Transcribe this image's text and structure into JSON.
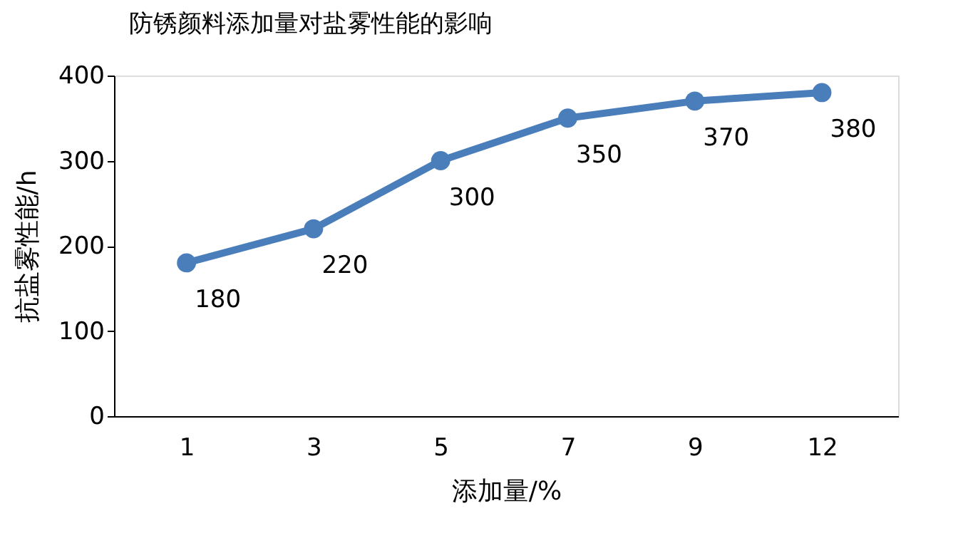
{
  "chart_data": {
    "type": "line",
    "title": "防锈颜料添加量对盐雾性能的影响",
    "xlabel": "添加量/%",
    "ylabel": "抗盐雾性能/h",
    "categories": [
      "1",
      "3",
      "5",
      "7",
      "9",
      "12"
    ],
    "series": [
      {
        "color": "#4a7ebb",
        "values": [
          180,
          220,
          300,
          350,
          370,
          380
        ]
      }
    ],
    "ylim": [
      0,
      400
    ],
    "yticks": [
      0,
      100,
      200,
      300,
      400
    ],
    "grid": false,
    "marker": "circle",
    "line_style": "solid",
    "data_labels": true
  }
}
